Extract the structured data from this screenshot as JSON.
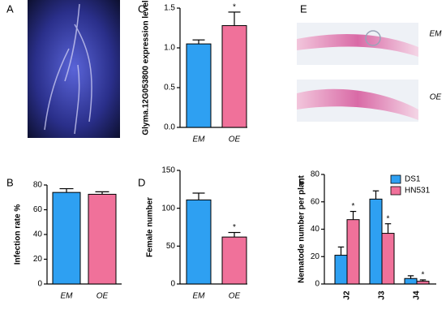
{
  "chart_data": [
    {
      "type": "image",
      "panel_label": "A"
    },
    {
      "type": "bar",
      "panel_label": "C",
      "ylabel": "Glyma.12G053800 expression level",
      "categories": [
        "EM",
        "OE"
      ],
      "values": [
        1.05,
        1.28
      ],
      "errors": [
        0.05,
        0.17
      ],
      "significance": [
        null,
        "*"
      ],
      "colors": [
        "#2ea0f2",
        "#f0719a"
      ],
      "ylim": [
        0,
        1.5
      ],
      "yticks": [
        {
          "value": 0,
          "label": "0.0"
        },
        0.5,
        {
          "value": 1,
          "label": "1.0"
        },
        1.5
      ]
    },
    {
      "type": "image",
      "panel_label": "E",
      "labels": [
        "EM",
        "OE"
      ]
    },
    {
      "type": "bar",
      "panel_label": "B",
      "ylabel": "Infection rate %",
      "categories": [
        "EM",
        "OE"
      ],
      "values": [
        74,
        72.5
      ],
      "errors": [
        3,
        2
      ],
      "significance": [
        null,
        null
      ],
      "colors": [
        "#2ea0f2",
        "#f0719a"
      ],
      "ylim": [
        0,
        80
      ],
      "yticks": [
        0,
        20,
        40,
        60,
        80
      ]
    },
    {
      "type": "bar",
      "panel_label": "D",
      "ylabel": "Female number",
      "categories": [
        "EM",
        "OE"
      ],
      "values": [
        111,
        62
      ],
      "errors": [
        9,
        6
      ],
      "significance": [
        null,
        "*"
      ],
      "colors": [
        "#2ea0f2",
        "#f0719a"
      ],
      "ylim": [
        0,
        150
      ],
      "yticks": [
        0,
        50,
        100,
        150
      ]
    },
    {
      "type": "grouped_bar",
      "panel_label": "F",
      "ylabel": "Nematode number per plant",
      "categories": [
        "J2",
        "J3",
        "J4"
      ],
      "ylim": [
        0,
        80
      ],
      "yticks": [
        0,
        20,
        40,
        60,
        80
      ],
      "series": [
        {
          "name": "DS1",
          "color": "#2ea0f2",
          "values": [
            21,
            62,
            4
          ],
          "errors": [
            6,
            6,
            2
          ],
          "significance": [
            null,
            null,
            null
          ]
        },
        {
          "name": "HN531",
          "color": "#f0719a",
          "values": [
            47,
            37,
            2
          ],
          "errors": [
            6,
            7,
            1
          ],
          "significance": [
            "*",
            "*",
            "*"
          ]
        }
      ]
    }
  ]
}
